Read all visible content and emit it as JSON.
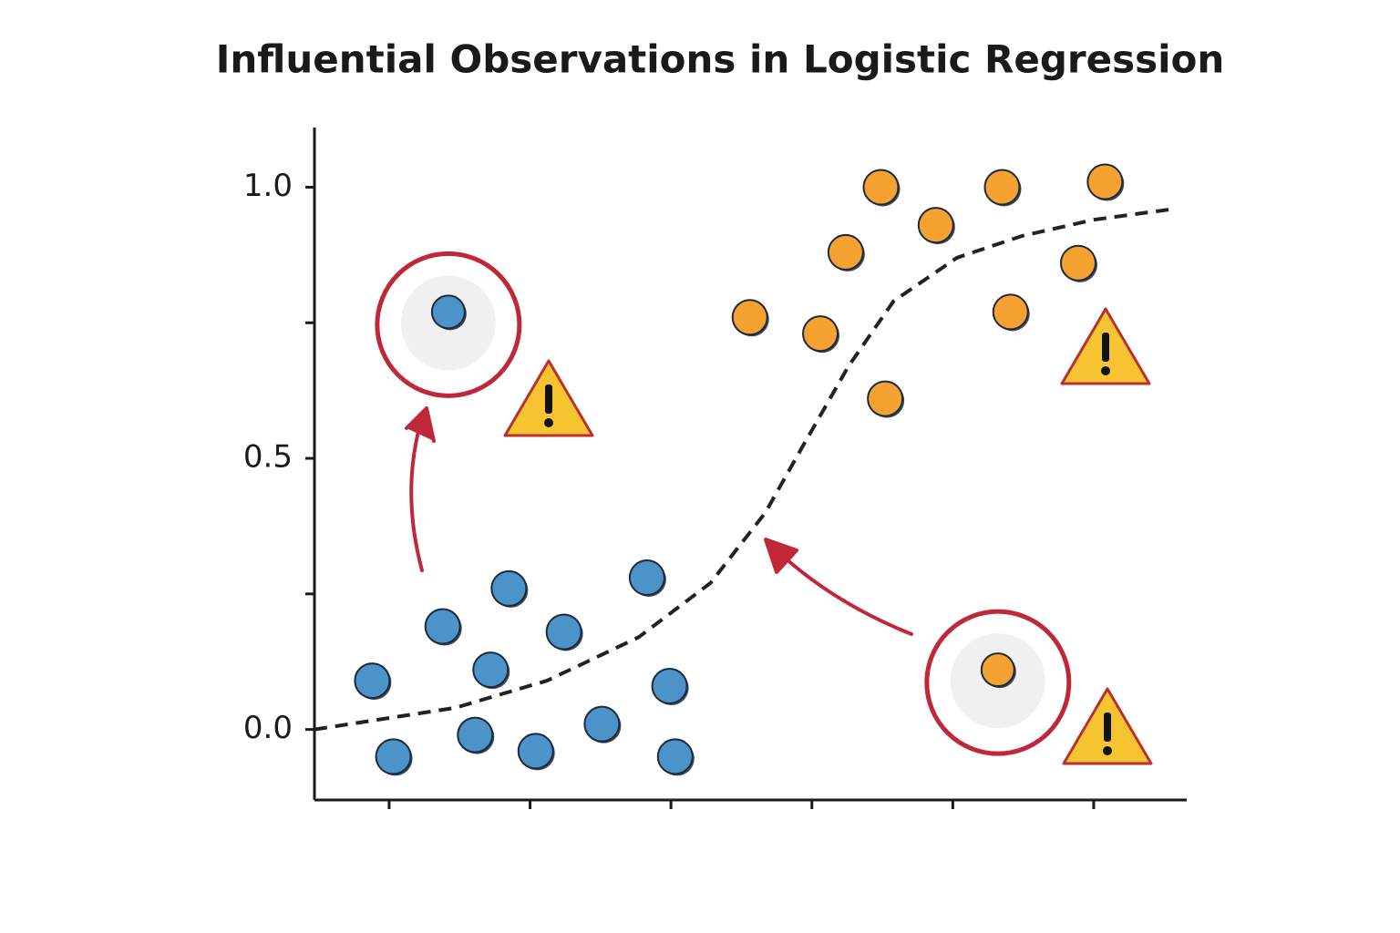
{
  "chart_data": {
    "type": "scatter",
    "title": "Influential Observations in Logistic Regression",
    "xlim": [
      0.47,
      6.66
    ],
    "ylim": [
      -0.13,
      1.11
    ],
    "xtick_marks": [
      1,
      2,
      3,
      4,
      5,
      6
    ],
    "yticks": [
      {
        "value": 0,
        "label": "0.0"
      },
      {
        "value": 0.5,
        "label": "0.5"
      },
      {
        "value": 1,
        "label": "1.0"
      }
    ],
    "ytick_marks": [
      0.25,
      0.75
    ],
    "series": [
      {
        "color": "#4b93c9",
        "x": [
          0.88,
          1.03,
          1.38,
          1.72,
          1.61,
          1.85,
          2.04,
          2.24,
          2.51,
          2.83,
          2.99,
          3.03
        ],
        "values": [
          0.09,
          -0.05,
          0.19,
          0.11,
          -0.01,
          0.26,
          -0.04,
          0.18,
          0.01,
          0.28,
          0.08,
          -0.05
        ]
      },
      {
        "color": "#f6a233",
        "x": [
          3.56,
          4.06,
          4.24,
          4.49,
          4.52,
          4.88,
          5.35,
          5.41,
          5.89,
          6.08
        ],
        "values": [
          0.76,
          0.73,
          0.88,
          1.0,
          0.61,
          0.93,
          1.0,
          0.77,
          0.86,
          1.01
        ]
      },
      {
        "color": "#4b93c9",
        "highlight": true,
        "x": [
          1.42
        ],
        "values": [
          0.77
        ]
      },
      {
        "color": "#f6a233",
        "highlight": true,
        "x": [
          5.32
        ],
        "values": [
          0.11
        ]
      }
    ],
    "fit": {
      "color": "#222222",
      "dashed": true,
      "x": [
        0.47,
        1.47,
        2.12,
        2.77,
        3.28,
        3.67,
        3.93,
        4.26,
        4.58,
        5.03,
        5.49,
        6.0,
        6.57
      ],
      "values": [
        0.0,
        0.04,
        0.09,
        0.17,
        0.27,
        0.4,
        0.52,
        0.67,
        0.79,
        0.87,
        0.91,
        0.94,
        0.96
      ]
    }
  }
}
